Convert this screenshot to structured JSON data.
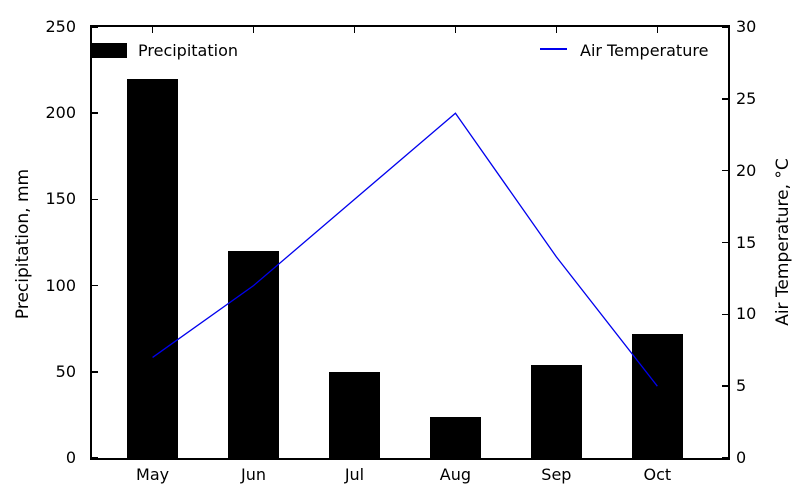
{
  "chart_data": {
    "type": "bar",
    "subtype": "combo-bar-line",
    "title": "",
    "categories": [
      "May",
      "Jun",
      "Jul",
      "Aug",
      "Sep",
      "Oct"
    ],
    "series": [
      {
        "name": "Precipitation",
        "type": "bar",
        "axis": "left",
        "color": "#000000",
        "values": [
          220,
          120,
          50,
          24,
          54,
          72
        ]
      },
      {
        "name": "Air Temperature",
        "type": "line",
        "axis": "right",
        "color": "#0000ee",
        "values": [
          7,
          12,
          18,
          24,
          14,
          5
        ]
      }
    ],
    "left_axis": {
      "label": "Precipitation, mm",
      "min": 0,
      "max": 250,
      "ticks": [
        0,
        50,
        100,
        150,
        200,
        250
      ]
    },
    "right_axis": {
      "label": "Air Temperature, °C",
      "min": 0,
      "max": 30,
      "ticks": [
        0,
        5,
        10,
        15,
        20,
        25,
        30
      ]
    },
    "xlim": [
      -0.6,
      5.7
    ],
    "bar_width": 0.5,
    "grid": false,
    "legend_position": "top-left and top-right, frameless"
  }
}
